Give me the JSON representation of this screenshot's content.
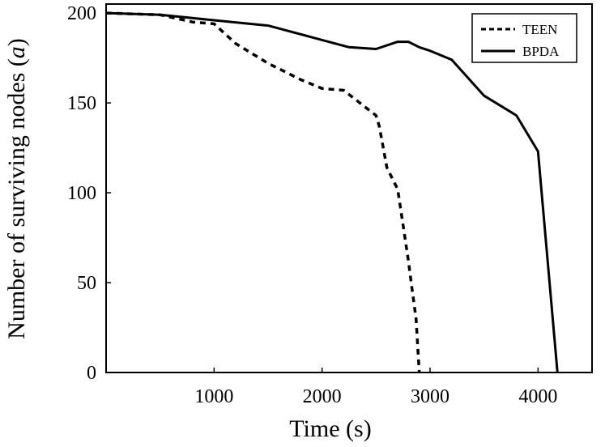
{
  "chart_data": {
    "type": "line",
    "title": "",
    "xlabel": "Time (s)",
    "ylabel": "Number of surviving nodes",
    "ylabel_italic": "a",
    "xlim": [
      0,
      4500
    ],
    "ylim": [
      0,
      205
    ],
    "xticks": [
      1000,
      2000,
      3000,
      4000
    ],
    "yticks": [
      0,
      50,
      100,
      150,
      200
    ],
    "grid": false,
    "legend_position": "top-right",
    "series": [
      {
        "name": "TEEN",
        "style": "dashed",
        "color": "#000000",
        "x": [
          0,
          500,
          800,
          1000,
          1200,
          1500,
          1800,
          2000,
          2200,
          2500,
          2530,
          2600,
          2700,
          2750,
          2800,
          2830,
          2870,
          2900
        ],
        "y": [
          200,
          199,
          195,
          194,
          183,
          172,
          163,
          158,
          157,
          143,
          137,
          114,
          102,
          82,
          62,
          48,
          30,
          0
        ]
      },
      {
        "name": "BPDA",
        "style": "solid",
        "color": "#000000",
        "x": [
          0,
          500,
          1000,
          1500,
          2000,
          2250,
          2500,
          2700,
          2800,
          2900,
          3000,
          3200,
          3500,
          3800,
          4000,
          4180
        ],
        "y": [
          200,
          199,
          196,
          193,
          185,
          181,
          180,
          184,
          184,
          181,
          179,
          174,
          154,
          143,
          123,
          0
        ]
      }
    ]
  }
}
